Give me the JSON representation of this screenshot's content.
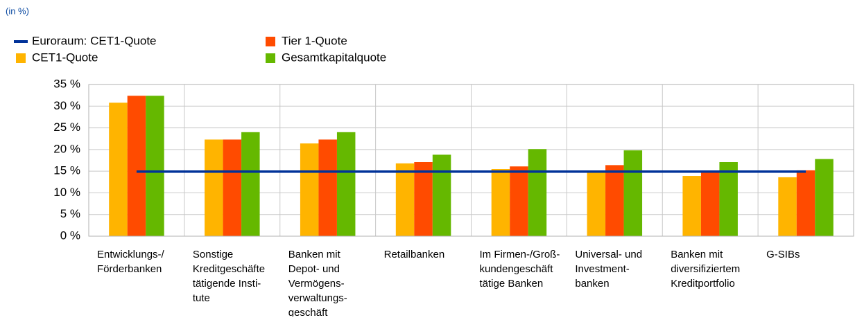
{
  "chart_data": {
    "type": "bar",
    "subtitle": "(in %)",
    "categories": [
      "Entwicklungs-/\nFörderbanken",
      "Sonstige\nKreditgeschäfte\ntätigende Insti-\ntute",
      "Banken mit\nDepot- und\nVermögens-\nverwaltungs-\ngeschäft",
      "Retailbanken",
      "Im Firmen-/Groß-\nkundengeschäft\ntätige Banken",
      "Universal- und\nInvestment-\nbanken",
      "Banken mit\ndiversifiziertem\nKreditportfolio",
      "G-SIBs"
    ],
    "series": [
      {
        "name": "Euroraum: CET1-Quote",
        "color": "#003299",
        "kind": "line",
        "values": [
          14.9,
          14.9,
          14.9,
          14.9,
          14.9,
          14.9,
          14.9,
          14.9
        ]
      },
      {
        "name": "CET1-Quote",
        "color": "#ffb400",
        "values": [
          30.8,
          22.3,
          21.4,
          16.8,
          15.5,
          14.8,
          13.9,
          13.6
        ]
      },
      {
        "name": "Tier 1-Quote",
        "color": "#ff4b00",
        "values": [
          32.4,
          22.3,
          22.3,
          17.1,
          16.1,
          16.4,
          14.7,
          15.2
        ]
      },
      {
        "name": "Gesamtkapitalquote",
        "color": "#65b800",
        "values": [
          32.4,
          24.0,
          24.0,
          18.8,
          20.1,
          19.8,
          17.1,
          17.8
        ]
      }
    ],
    "ylim": [
      0,
      35
    ],
    "yticks": [
      {
        "value": 0,
        "label": "0 %"
      },
      {
        "value": 5,
        "label": "5 %"
      },
      {
        "value": 10,
        "label": "10 %"
      },
      {
        "value": 15,
        "label": "15 %"
      },
      {
        "value": 20,
        "label": "20 %"
      },
      {
        "value": 25,
        "label": "25 %"
      },
      {
        "value": 30,
        "label": "30 %"
      },
      {
        "value": 35,
        "label": "35 %"
      }
    ],
    "grid": true
  }
}
